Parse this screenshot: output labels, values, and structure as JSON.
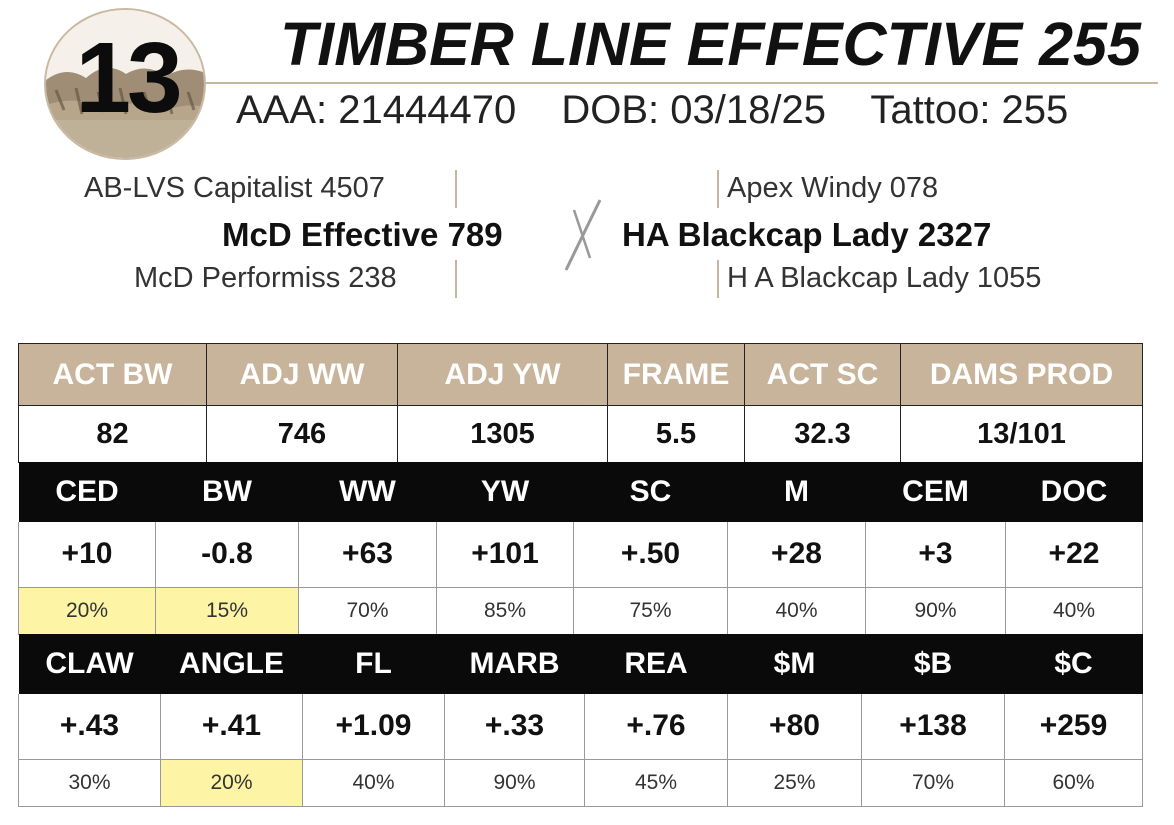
{
  "lot": {
    "number": "13"
  },
  "animal": {
    "name": "TIMBER LINE EFFECTIVE 255",
    "aaa": "AAA: 21444470",
    "dob": "DOB: 03/18/25",
    "tattoo": "Tattoo: 255"
  },
  "pedigree": {
    "sire": "McD Effective 789",
    "sire_sire": "AB-LVS Capitalist 4507",
    "sire_dam": "McD Performiss 238",
    "dam": "HA Blackcap Lady 2327",
    "dam_sire": "Apex Windy 078",
    "dam_dam": "H A Blackcap Lady 1055"
  },
  "stats": {
    "headers": [
      "ACT BW",
      "ADJ WW",
      "ADJ YW",
      "FRAME",
      "ACT SC",
      "DAMS PROD"
    ],
    "values": [
      "82",
      "746",
      "1305",
      "5.5",
      "32.3",
      "13/101"
    ]
  },
  "epd_row1": {
    "headers": [
      "CED",
      "BW",
      "WW",
      "YW",
      "SC",
      "M",
      "CEM",
      "DOC"
    ],
    "values": [
      "+10",
      "-0.8",
      "+63",
      "+101",
      "+.50",
      "+28",
      "+3",
      "+22"
    ],
    "percentiles": [
      "20%",
      "15%",
      "70%",
      "85%",
      "75%",
      "40%",
      "90%",
      "40%"
    ],
    "highlighted": [
      true,
      true,
      false,
      false,
      false,
      false,
      false,
      false
    ]
  },
  "epd_row2": {
    "headers": [
      "CLAW",
      "ANGLE",
      "FL",
      "MARB",
      "REA",
      "$M",
      "$B",
      "$C"
    ],
    "values": [
      "+.43",
      "+.41",
      "+1.09",
      "+.33",
      "+.76",
      "+80",
      "+138",
      "+259"
    ],
    "percentiles": [
      "30%",
      "20%",
      "40%",
      "90%",
      "45%",
      "25%",
      "70%",
      "60%"
    ],
    "highlighted": [
      false,
      true,
      false,
      false,
      false,
      false,
      false,
      false
    ]
  },
  "colors": {
    "tan_header": "#c7b49a",
    "black_header": "#0a0a0a",
    "highlight": "#fdf4a5",
    "rule": "#c7b59c"
  }
}
